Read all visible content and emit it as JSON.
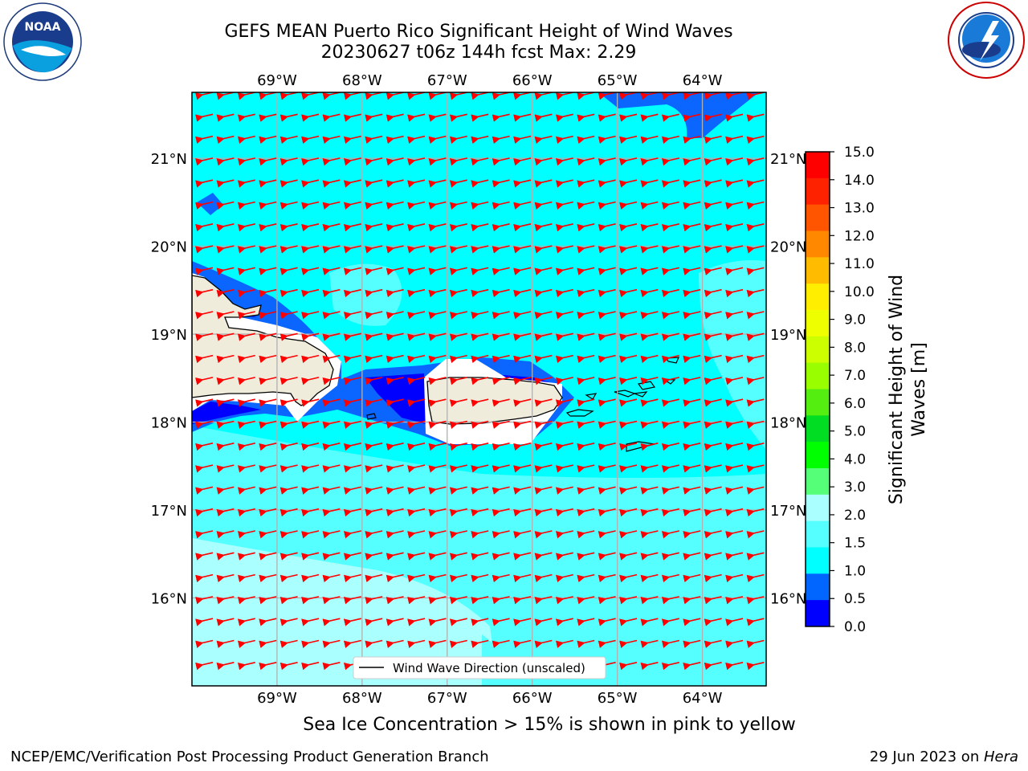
{
  "title_line1": "GEFS MEAN Puerto Rico Significant Height of Wind Waves",
  "title_line2": "20230627 t06z 144h fcst   Max: 2.29",
  "logos": {
    "left": "noaa-logo",
    "right": "nws-logo"
  },
  "map": {
    "lon_labels": [
      "69°W",
      "68°W",
      "67°W",
      "66°W",
      "65°W",
      "64°W"
    ],
    "lat_labels": [
      "21°N",
      "20°N",
      "19°N",
      "18°N",
      "17°N",
      "16°N"
    ],
    "lon_values": [
      -69,
      -68,
      -67,
      -66,
      -65,
      -64
    ],
    "lat_values": [
      21,
      20,
      19,
      18,
      17,
      16
    ],
    "extent": {
      "lon_min": -70.0,
      "lon_max": -63.25,
      "lat_min": 15.0,
      "lat_max": 21.75
    },
    "legend_label": "Wind Wave Direction (unscaled)",
    "arrow_color": "#ff0000",
    "land_color": "#efecdc"
  },
  "colorbar": {
    "label_line1": "Significant Height of Wind",
    "label_line2": "Waves [m]",
    "ticks": [
      "15.0",
      "14.0",
      "13.0",
      "12.0",
      "11.0",
      "10.0",
      "9.0",
      "8.0",
      "7.0",
      "6.0",
      "5.0",
      "4.0",
      "3.0",
      "2.0",
      "1.5",
      "1.0",
      "0.5",
      "0.0"
    ],
    "colors_top_to_bottom": [
      "#ff0000",
      "#ff2200",
      "#ff5500",
      "#ff8800",
      "#ffbb00",
      "#ffee00",
      "#eeff00",
      "#ccff00",
      "#99ff00",
      "#55ee11",
      "#00dd22",
      "#00ff00",
      "#55ff77",
      "#aaffff",
      "#55ffff",
      "#00ffff",
      "#0066ff",
      "#0000ff"
    ]
  },
  "ice_note": "Sea Ice Concentration > 15% is shown in pink to yellow",
  "footer_left": "NCEP/EMC/Verification Post Processing Product Generation Branch",
  "footer_right_prefix": "29 Jun 2023 on ",
  "footer_right_host": "Hera"
}
